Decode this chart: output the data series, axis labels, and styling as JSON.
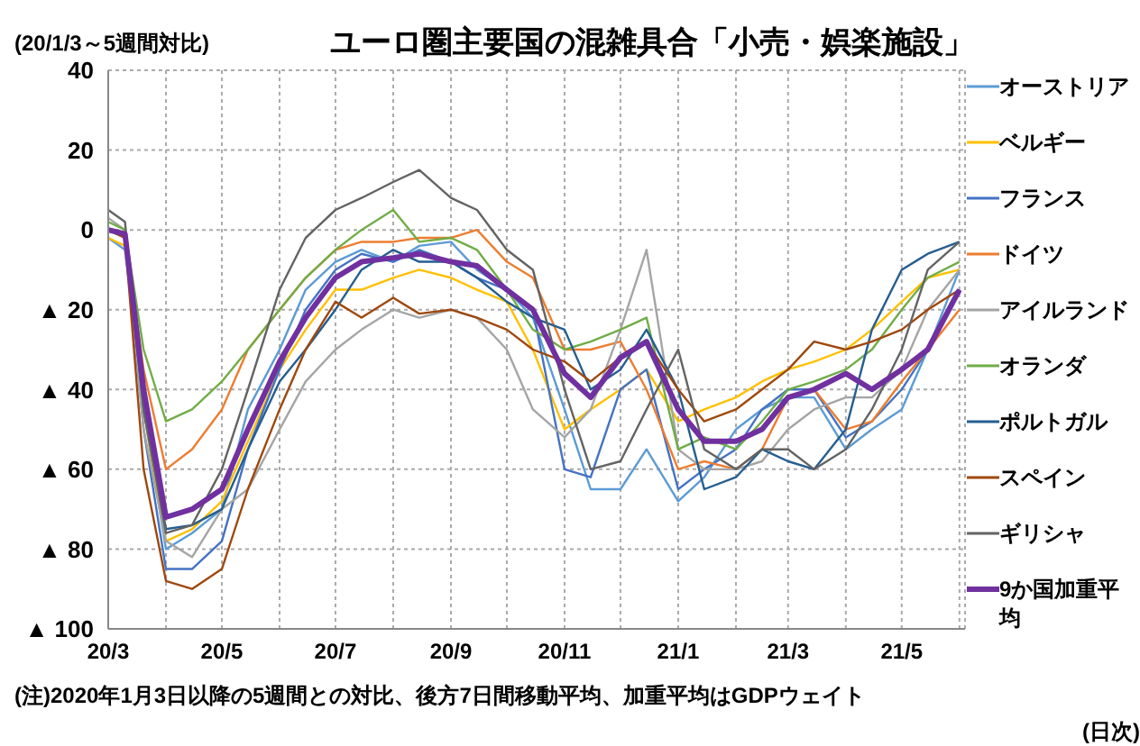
{
  "chart_data": {
    "type": "line",
    "title": "ユーロ圏主要国の混雑具合「小売・娯楽施設」",
    "ylabel": "(20/1/3～5週間対比)",
    "annotations": [
      "(注)2020年1月3日以降の5週間との対比、後方7日間移動平均、加重平均はGDPウェイト",
      "(日次)"
    ],
    "x": [
      "2020-03-01",
      "2020-03-10",
      "2020-03-20",
      "2020-04-01",
      "2020-04-15",
      "2020-05-01",
      "2020-05-15",
      "2020-06-01",
      "2020-06-15",
      "2020-07-01",
      "2020-07-15",
      "2020-08-01",
      "2020-08-15",
      "2020-09-01",
      "2020-09-15",
      "2020-10-01",
      "2020-10-15",
      "2020-11-01",
      "2020-11-15",
      "2020-12-01",
      "2020-12-15",
      "2021-01-01",
      "2021-01-15",
      "2021-02-01",
      "2021-02-15",
      "2021-03-01",
      "2021-03-15",
      "2021-04-01",
      "2021-04-15",
      "2021-05-01",
      "2021-05-15",
      "2021-06-01"
    ],
    "xlim": [
      "2020-03-01",
      "2021-06-04"
    ],
    "xticks": [
      {
        "value": "2020-03-01",
        "label": "20/3"
      },
      {
        "value": "2020-04-01",
        "label": null
      },
      {
        "value": "2020-05-01",
        "label": "20/5"
      },
      {
        "value": "2020-06-01",
        "label": null
      },
      {
        "value": "2020-07-01",
        "label": "20/7"
      },
      {
        "value": "2020-08-01",
        "label": null
      },
      {
        "value": "2020-09-01",
        "label": "20/9"
      },
      {
        "value": "2020-10-01",
        "label": null
      },
      {
        "value": "2020-11-01",
        "label": "20/11"
      },
      {
        "value": "2020-12-01",
        "label": null
      },
      {
        "value": "2021-01-01",
        "label": "21/1"
      },
      {
        "value": "2021-02-01",
        "label": null
      },
      {
        "value": "2021-03-01",
        "label": "21/3"
      },
      {
        "value": "2021-04-01",
        "label": null
      },
      {
        "value": "2021-05-01",
        "label": "21/5"
      },
      {
        "value": "2021-06-01",
        "label": null
      }
    ],
    "ylim": [
      -100,
      40
    ],
    "yticks": [
      {
        "value": -100,
        "label": "▲ 100"
      },
      {
        "value": -80,
        "label": "▲ 80"
      },
      {
        "value": -60,
        "label": "▲ 60"
      },
      {
        "value": -40,
        "label": "▲ 40"
      },
      {
        "value": -20,
        "label": "▲ 20"
      },
      0,
      20,
      40
    ],
    "grid": true,
    "legend": "right",
    "marker": "none",
    "line_style": "solid",
    "series": [
      {
        "name": "オーストリア",
        "color": "#5b9bd5",
        "values": [
          -2,
          -5,
          -45,
          -80,
          -76,
          -70,
          -45,
          -30,
          -15,
          -8,
          -5,
          -8,
          -4,
          -3,
          -10,
          -15,
          -22,
          -45,
          -65,
          -65,
          -55,
          -68,
          -62,
          -50,
          -45,
          -42,
          -42,
          -55,
          -50,
          -45,
          -30,
          -10
        ]
      },
      {
        "name": "ベルギー",
        "color": "#ffc000",
        "values": [
          -2,
          -4,
          -45,
          -78,
          -75,
          -68,
          -53,
          -35,
          -25,
          -15,
          -15,
          -12,
          -10,
          -12,
          -15,
          -18,
          -30,
          -50,
          -45,
          -40,
          -35,
          -48,
          -45,
          -42,
          -38,
          -35,
          -33,
          -30,
          -25,
          -18,
          -12,
          -10
        ]
      },
      {
        "name": "フランス",
        "color": "#4472c4",
        "values": [
          0,
          -2,
          -50,
          -85,
          -85,
          -78,
          -55,
          -35,
          -20,
          -10,
          -6,
          -8,
          -5,
          -8,
          -12,
          -15,
          -20,
          -60,
          -62,
          -40,
          -35,
          -65,
          -60,
          -55,
          -45,
          -40,
          -40,
          -52,
          -48,
          -40,
          -30,
          -15
        ]
      },
      {
        "name": "ドイツ",
        "color": "#ed7d31",
        "values": [
          0,
          -2,
          -35,
          -60,
          -55,
          -45,
          -30,
          -20,
          -12,
          -5,
          -3,
          -3,
          -2,
          -2,
          0,
          -8,
          -12,
          -30,
          -30,
          -28,
          -40,
          -60,
          -58,
          -60,
          -55,
          -42,
          -40,
          -50,
          -48,
          -38,
          -30,
          -20
        ]
      },
      {
        "name": "アイルランド",
        "color": "#a5a5a5",
        "values": [
          3,
          0,
          -50,
          -78,
          -82,
          -70,
          -65,
          -50,
          -38,
          -30,
          -25,
          -20,
          -22,
          -20,
          -22,
          -30,
          -45,
          -52,
          -45,
          -25,
          -5,
          -55,
          -60,
          -60,
          -58,
          -50,
          -45,
          -42,
          -42,
          -35,
          -20,
          -10
        ]
      },
      {
        "name": "オランダ",
        "color": "#70ad47",
        "values": [
          2,
          0,
          -30,
          -48,
          -45,
          -38,
          -30,
          -20,
          -12,
          -5,
          0,
          5,
          -3,
          -2,
          -5,
          -15,
          -25,
          -30,
          -28,
          -25,
          -22,
          -55,
          -52,
          -55,
          -48,
          -40,
          -38,
          -35,
          -30,
          -20,
          -12,
          -8
        ]
      },
      {
        "name": "ポルトガル",
        "color": "#255e91",
        "values": [
          0,
          -1,
          -45,
          -75,
          -74,
          -70,
          -55,
          -38,
          -30,
          -20,
          -10,
          -5,
          -8,
          -8,
          -12,
          -18,
          -22,
          -25,
          -40,
          -35,
          -25,
          -40,
          -65,
          -62,
          -55,
          -58,
          -60,
          -50,
          -25,
          -10,
          -6,
          -3
        ]
      },
      {
        "name": "スペイン",
        "color": "#9e480e",
        "values": [
          0,
          -2,
          -60,
          -88,
          -90,
          -85,
          -65,
          -45,
          -30,
          -18,
          -22,
          -17,
          -21,
          -20,
          -22,
          -25,
          -30,
          -33,
          -38,
          -32,
          -28,
          -40,
          -48,
          -45,
          -40,
          -35,
          -28,
          -30,
          -28,
          -25,
          -20,
          -15
        ]
      },
      {
        "name": "ギリシャ",
        "color": "#636363",
        "values": [
          5,
          2,
          -45,
          -76,
          -74,
          -60,
          -40,
          -15,
          -2,
          5,
          8,
          12,
          15,
          8,
          5,
          -5,
          -10,
          -40,
          -60,
          -58,
          -45,
          -30,
          -55,
          -60,
          -55,
          -55,
          -60,
          -55,
          -45,
          -30,
          -10,
          -3
        ]
      },
      {
        "name": "9か国加重平均",
        "color": "#7030a0",
        "values": [
          0,
          -1,
          -40,
          -72,
          -70,
          -65,
          -50,
          -33,
          -22,
          -12,
          -8,
          -7,
          -6,
          -8,
          -9,
          -15,
          -20,
          -36,
          -42,
          -32,
          -28,
          -45,
          -53,
          -53,
          -50,
          -42,
          -40,
          -36,
          -40,
          -35,
          -30,
          -15
        ]
      }
    ]
  }
}
